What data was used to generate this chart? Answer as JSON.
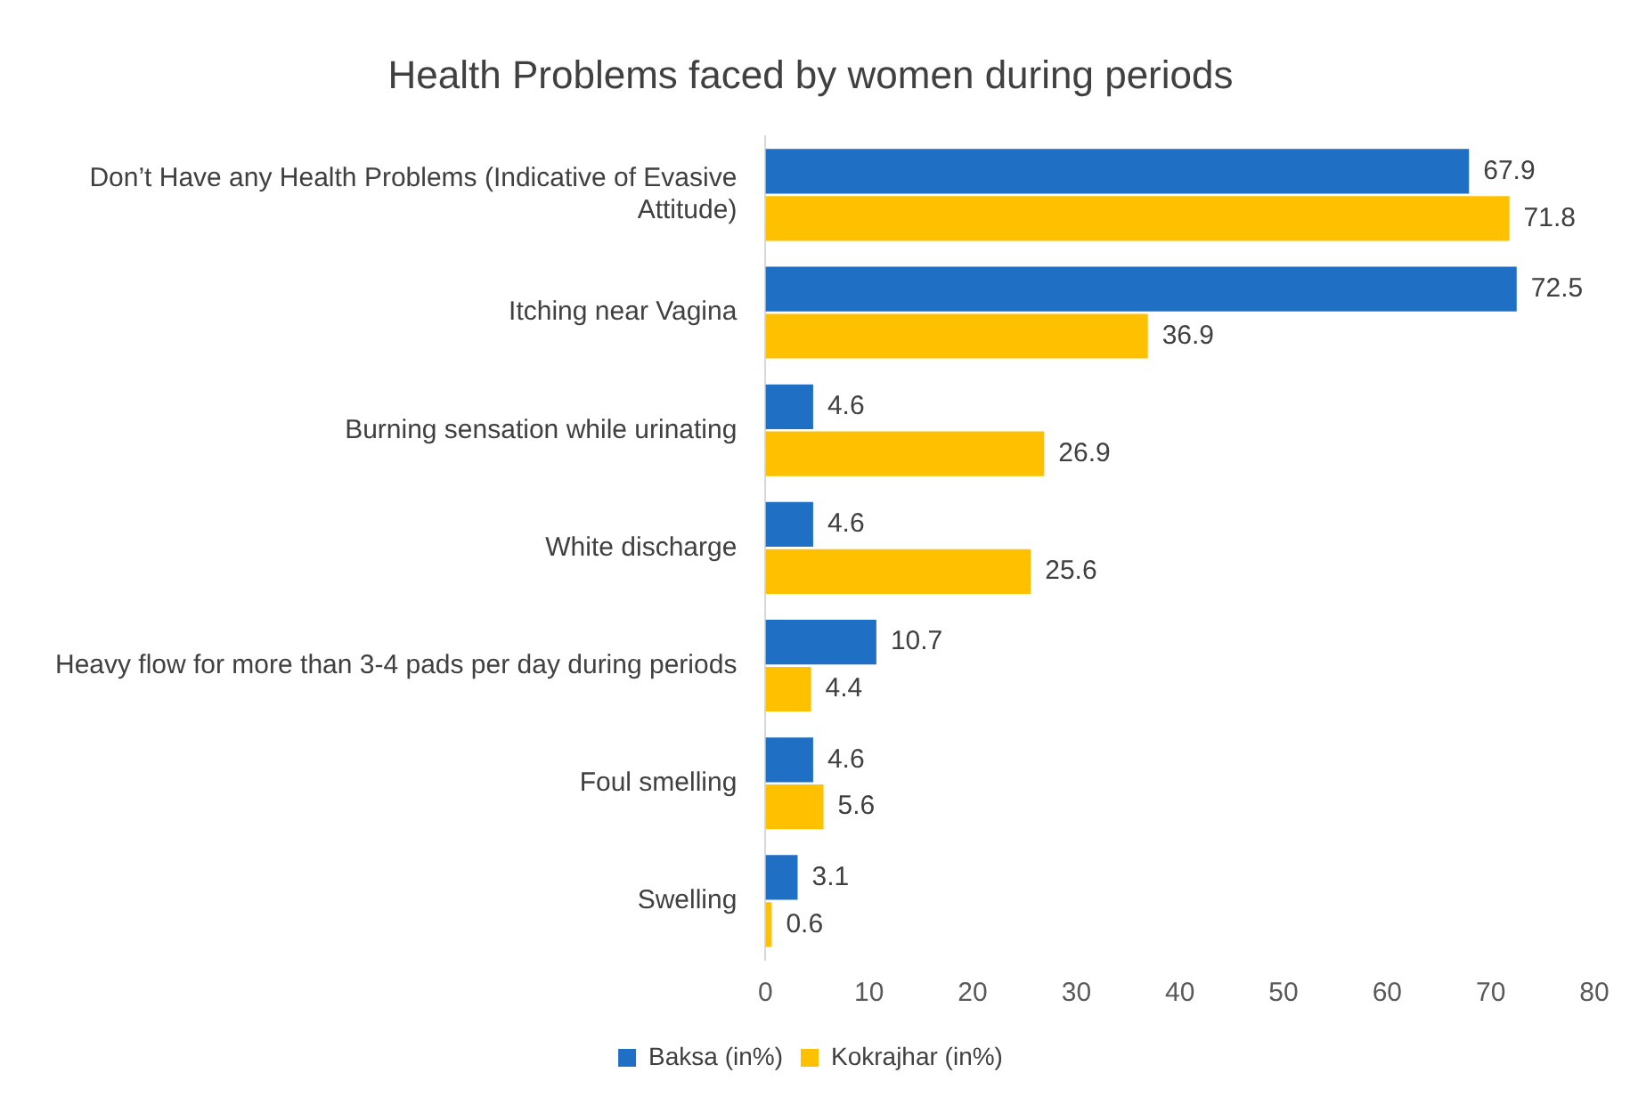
{
  "chart_data": {
    "type": "bar",
    "orientation": "horizontal",
    "title": "Health Problems faced by women during periods",
    "categories": [
      "Don’t Have any Health Problems (Indicative of Evasive Attitude)",
      "Itching near Vagina",
      "Burning sensation while urinating",
      "White discharge",
      "Heavy flow for more than 3-4 pads per day during periods",
      "Foul smelling",
      "Swelling"
    ],
    "series": [
      {
        "name": "Baksa (in%)",
        "color": "#1f6fc5",
        "values": [
          67.9,
          72.5,
          4.6,
          4.6,
          10.7,
          4.6,
          3.1
        ]
      },
      {
        "name": "Kokrajhar (in%)",
        "color": "#ffc000",
        "values": [
          71.8,
          36.9,
          26.9,
          25.6,
          4.4,
          5.6,
          0.6
        ]
      }
    ],
    "xlim": [
      0,
      80
    ],
    "xticks": [
      0,
      10,
      20,
      30,
      40,
      50,
      60,
      70,
      80
    ],
    "grid": false,
    "legend": "bottom",
    "data_labels": true
  }
}
